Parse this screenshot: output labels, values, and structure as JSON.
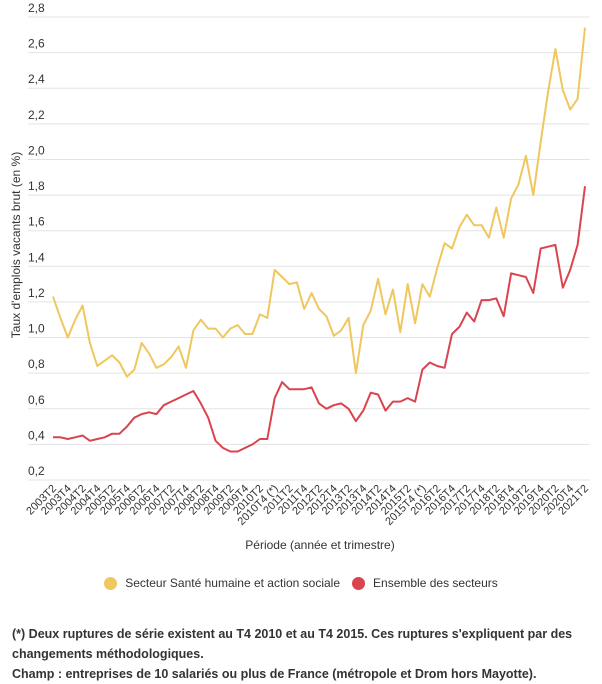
{
  "chart_data": {
    "type": "line",
    "title": "",
    "xlabel": "Période (année et trimestre)",
    "ylabel": "Taux d'emplois vacants brut (en %)",
    "ylim": [
      0.2,
      2.8
    ],
    "yticks": [
      "0,2",
      "0,4",
      "0,6",
      "0,8",
      "1,0",
      "1,2",
      "1,4",
      "1,6",
      "1,8",
      "2,0",
      "2,2",
      "2,4",
      "2,6",
      "2,8"
    ],
    "ytick_values": [
      0.2,
      0.4,
      0.6,
      0.8,
      1.0,
      1.2,
      1.4,
      1.6,
      1.8,
      2.0,
      2.2,
      2.4,
      2.6,
      2.8
    ],
    "grid": true,
    "legend_position": "bottom",
    "x": [
      "2003T2",
      "2003T3",
      "2003T4",
      "2004T1",
      "2004T2",
      "2004T3",
      "2004T4",
      "2005T1",
      "2005T2",
      "2005T3",
      "2005T4",
      "2006T1",
      "2006T2",
      "2006T3",
      "2006T4",
      "2007T1",
      "2007T2",
      "2007T3",
      "2007T4",
      "2008T1",
      "2008T2",
      "2008T3",
      "2008T4",
      "2009T1",
      "2009T2",
      "2009T3",
      "2009T4",
      "2010T1",
      "2010T2",
      "2010T3",
      "2010T4 (*)",
      "2011T1",
      "2011T2",
      "2011T3",
      "2011T4",
      "2012T1",
      "2012T2",
      "2012T3",
      "2012T4",
      "2013T1",
      "2013T2",
      "2013T3",
      "2013T4",
      "2014T1",
      "2014T2",
      "2014T3",
      "2014T4",
      "2015T1",
      "2015T2",
      "2015T3",
      "2015T4 (*)",
      "2016T1",
      "2016T2",
      "2016T3",
      "2016T4",
      "2017T1",
      "2017T2",
      "2017T3",
      "2017T4",
      "2018T1",
      "2018T2",
      "2018T3",
      "2018T4",
      "2019T1",
      "2019T2",
      "2019T3",
      "2019T4",
      "2020T1",
      "2020T2",
      "2020T3",
      "2020T4",
      "2021T1",
      "2021T2"
    ],
    "xtick_labels": [
      "2003T2",
      "2003T4",
      "2004T2",
      "2004T4",
      "2005T2",
      "2005T4",
      "2006T2",
      "2006T4",
      "2007T2",
      "2007T4",
      "2008T2",
      "2008T4",
      "2009T2",
      "2009T4",
      "2010T2",
      "2010T4 (*)",
      "2011T2",
      "2011T4",
      "2012T2",
      "2012T4",
      "2013T2",
      "2013T4",
      "2014T2",
      "2014T4",
      "2015T2",
      "2015T4 (*)",
      "2016T2",
      "2016T4",
      "2017T2",
      "2017T4",
      "2018T2",
      "2018T4",
      "2019T2",
      "2019T4",
      "2020T2",
      "2020T4",
      "2021T2"
    ],
    "series": [
      {
        "name": "Secteur Santé humaine et action sociale",
        "color": "#f0c75e",
        "values": [
          1.23,
          1.11,
          1.0,
          1.1,
          1.18,
          0.97,
          0.84,
          0.87,
          0.9,
          0.86,
          0.78,
          0.82,
          0.97,
          0.91,
          0.83,
          0.85,
          0.89,
          0.95,
          0.83,
          1.04,
          1.1,
          1.05,
          1.05,
          1.0,
          1.05,
          1.07,
          1.02,
          1.02,
          1.13,
          1.11,
          1.38,
          1.34,
          1.3,
          1.31,
          1.16,
          1.25,
          1.16,
          1.12,
          1.01,
          1.04,
          1.11,
          0.8,
          1.07,
          1.15,
          1.33,
          1.13,
          1.27,
          1.03,
          1.3,
          1.08,
          1.3,
          1.23,
          1.39,
          1.53,
          1.5,
          1.62,
          1.69,
          1.63,
          1.63,
          1.56,
          1.73,
          1.56,
          1.78,
          1.86,
          2.02,
          1.8,
          2.1,
          2.38,
          2.62,
          2.39,
          2.28,
          2.34,
          2.74
        ]
      },
      {
        "name": "Ensemble des secteurs",
        "color": "#d9444f",
        "values": [
          0.44,
          0.44,
          0.43,
          0.44,
          0.45,
          0.42,
          0.43,
          0.44,
          0.46,
          0.46,
          0.5,
          0.55,
          0.57,
          0.58,
          0.57,
          0.62,
          0.64,
          0.66,
          0.68,
          0.7,
          0.63,
          0.55,
          0.42,
          0.38,
          0.36,
          0.36,
          0.38,
          0.4,
          0.43,
          0.43,
          0.66,
          0.75,
          0.71,
          0.71,
          0.71,
          0.72,
          0.63,
          0.6,
          0.62,
          0.63,
          0.6,
          0.53,
          0.59,
          0.69,
          0.68,
          0.59,
          0.64,
          0.64,
          0.66,
          0.64,
          0.82,
          0.86,
          0.84,
          0.83,
          1.02,
          1.06,
          1.14,
          1.09,
          1.21,
          1.21,
          1.22,
          1.12,
          1.36,
          1.35,
          1.34,
          1.25,
          1.5,
          1.51,
          1.52,
          1.28,
          1.38,
          1.52,
          1.85
        ]
      }
    ]
  },
  "legend": {
    "items": [
      {
        "label": "Secteur Santé humaine et action sociale",
        "color": "#f0c75e"
      },
      {
        "label": "Ensemble des secteurs",
        "color": "#d9444f"
      }
    ]
  },
  "notes": {
    "line1": "(*) Deux ruptures de série existent au T4 2010 et au T4 2015. Ces ruptures s'expliquent par des changements méthodologiques.",
    "line2": "Champ : entreprises de 10 salariés ou plus de France (métropole et Drom hors Mayotte)."
  }
}
